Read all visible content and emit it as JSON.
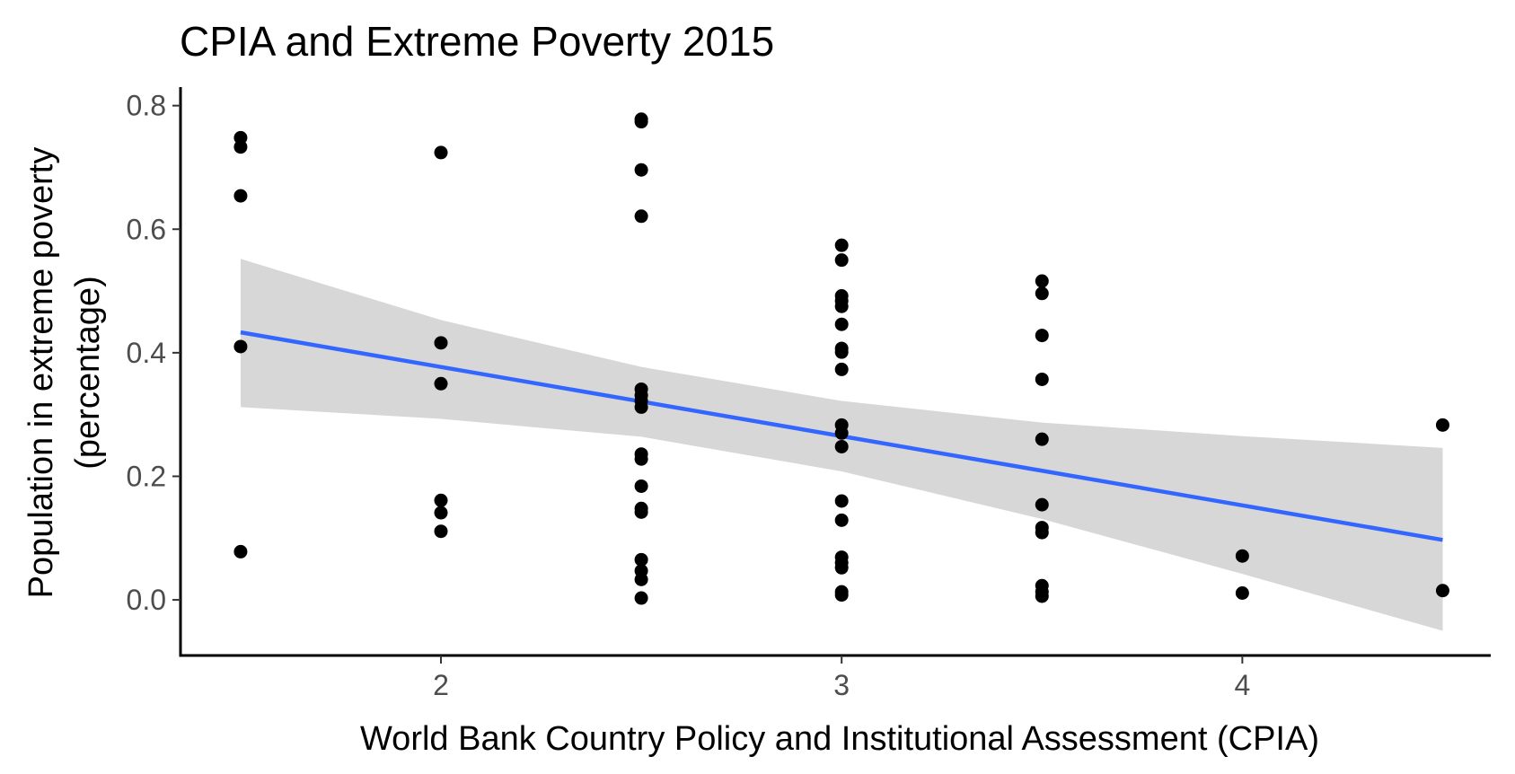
{
  "chart_data": {
    "type": "scatter",
    "title": "CPIA and Extreme Poverty 2015",
    "xlabel": "World Bank Country Policy and Institutional Assessment (CPIA)",
    "ylabel_line1": "Population in extreme poverty",
    "ylabel_line2": "(percentage)",
    "xlim": [
      1.35,
      4.62
    ],
    "ylim": [
      -0.09,
      0.83
    ],
    "x_ticks": [
      {
        "value": 2,
        "label": "2"
      },
      {
        "value": 3,
        "label": "3"
      },
      {
        "value": 4,
        "label": "4"
      }
    ],
    "y_ticks": [
      {
        "value": 0.0,
        "label": "0.0"
      },
      {
        "value": 0.2,
        "label": "0.2"
      },
      {
        "value": 0.4,
        "label": "0.4"
      },
      {
        "value": 0.6,
        "label": "0.6"
      },
      {
        "value": 0.8,
        "label": "0.8"
      }
    ],
    "grid": false,
    "legend": "none",
    "colors": {
      "points": "#000000",
      "trend_line": "#3366ff",
      "confidence_band": "#d3d3d3",
      "axis": "#000000",
      "tick_label": "#4d4d4d"
    },
    "points": [
      {
        "x": 1.5,
        "y": 0.748
      },
      {
        "x": 1.5,
        "y": 0.733
      },
      {
        "x": 1.5,
        "y": 0.654
      },
      {
        "x": 1.5,
        "y": 0.41
      },
      {
        "x": 1.5,
        "y": 0.078
      },
      {
        "x": 2.0,
        "y": 0.724
      },
      {
        "x": 2.0,
        "y": 0.416
      },
      {
        "x": 2.0,
        "y": 0.35
      },
      {
        "x": 2.0,
        "y": 0.161
      },
      {
        "x": 2.0,
        "y": 0.141
      },
      {
        "x": 2.0,
        "y": 0.111
      },
      {
        "x": 2.5,
        "y": 0.778
      },
      {
        "x": 2.5,
        "y": 0.774
      },
      {
        "x": 2.5,
        "y": 0.696
      },
      {
        "x": 2.5,
        "y": 0.621
      },
      {
        "x": 2.5,
        "y": 0.341
      },
      {
        "x": 2.5,
        "y": 0.331
      },
      {
        "x": 2.5,
        "y": 0.322
      },
      {
        "x": 2.5,
        "y": 0.312
      },
      {
        "x": 2.5,
        "y": 0.236
      },
      {
        "x": 2.5,
        "y": 0.228
      },
      {
        "x": 2.5,
        "y": 0.184
      },
      {
        "x": 2.5,
        "y": 0.148
      },
      {
        "x": 2.5,
        "y": 0.142
      },
      {
        "x": 2.5,
        "y": 0.065
      },
      {
        "x": 2.5,
        "y": 0.047
      },
      {
        "x": 2.5,
        "y": 0.033
      },
      {
        "x": 2.5,
        "y": 0.003
      },
      {
        "x": 3.0,
        "y": 0.574
      },
      {
        "x": 3.0,
        "y": 0.55
      },
      {
        "x": 3.0,
        "y": 0.492
      },
      {
        "x": 3.0,
        "y": 0.484
      },
      {
        "x": 3.0,
        "y": 0.475
      },
      {
        "x": 3.0,
        "y": 0.446
      },
      {
        "x": 3.0,
        "y": 0.407
      },
      {
        "x": 3.0,
        "y": 0.401
      },
      {
        "x": 3.0,
        "y": 0.373
      },
      {
        "x": 3.0,
        "y": 0.283
      },
      {
        "x": 3.0,
        "y": 0.27
      },
      {
        "x": 3.0,
        "y": 0.248
      },
      {
        "x": 3.0,
        "y": 0.16
      },
      {
        "x": 3.0,
        "y": 0.129
      },
      {
        "x": 3.0,
        "y": 0.069
      },
      {
        "x": 3.0,
        "y": 0.06
      },
      {
        "x": 3.0,
        "y": 0.052
      },
      {
        "x": 3.0,
        "y": 0.013
      },
      {
        "x": 3.0,
        "y": 0.008
      },
      {
        "x": 3.5,
        "y": 0.516
      },
      {
        "x": 3.5,
        "y": 0.496
      },
      {
        "x": 3.5,
        "y": 0.428
      },
      {
        "x": 3.5,
        "y": 0.357
      },
      {
        "x": 3.5,
        "y": 0.26
      },
      {
        "x": 3.5,
        "y": 0.154
      },
      {
        "x": 3.5,
        "y": 0.117
      },
      {
        "x": 3.5,
        "y": 0.109
      },
      {
        "x": 3.5,
        "y": 0.023
      },
      {
        "x": 3.5,
        "y": 0.013
      },
      {
        "x": 3.5,
        "y": 0.006
      },
      {
        "x": 4.0,
        "y": 0.071
      },
      {
        "x": 4.0,
        "y": 0.011
      },
      {
        "x": 4.5,
        "y": 0.283
      },
      {
        "x": 4.5,
        "y": 0.015
      }
    ],
    "trend_line": {
      "x": [
        1.5,
        2.0,
        2.5,
        3.0,
        3.5,
        4.0,
        4.5
      ],
      "y": [
        0.433,
        0.377,
        0.321,
        0.265,
        0.209,
        0.153,
        0.097
      ]
    },
    "confidence_band": {
      "x": [
        1.5,
        2.0,
        2.5,
        3.0,
        3.5,
        4.0,
        4.5
      ],
      "upper": [
        0.552,
        0.453,
        0.377,
        0.322,
        0.287,
        0.265,
        0.246
      ],
      "lower": [
        0.312,
        0.293,
        0.264,
        0.208,
        0.131,
        0.042,
        -0.05
      ]
    }
  }
}
